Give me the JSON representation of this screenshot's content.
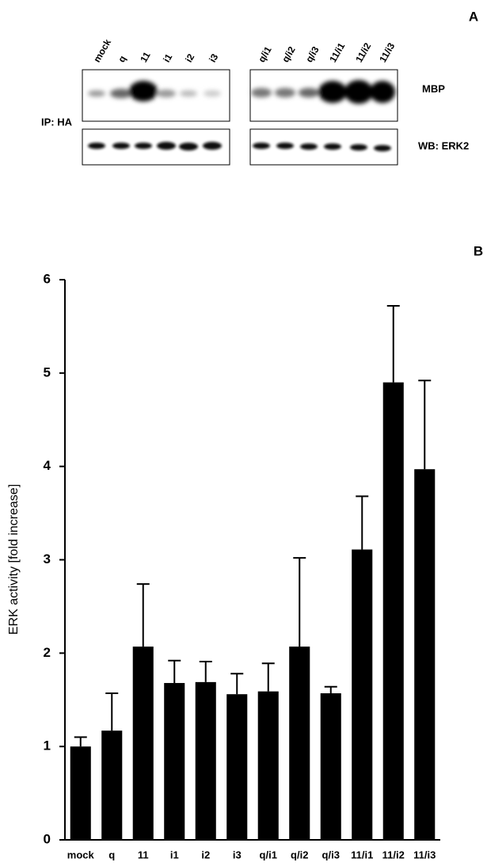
{
  "panel_a": {
    "label": "A",
    "lanes": [
      "mock",
      "q",
      "11",
      "i1",
      "i2",
      "i3",
      "q/i1",
      "q/i2",
      "q/i3",
      "11/i1",
      "11/i2",
      "11/i3"
    ],
    "blot_top": "MBP",
    "blot_bottom": "WB: ERK2",
    "ip": "IP: HA"
  },
  "chart_data": {
    "type": "bar",
    "panel_label": "B",
    "y_label": "ERK activity [fold increase]",
    "categories": [
      "mock",
      "q",
      "11",
      "i1",
      "i2",
      "i3",
      "q/i1",
      "q/i2",
      "q/i3",
      "11/i1",
      "11/i2",
      "11/i3"
    ],
    "values": [
      1.0,
      1.17,
      2.07,
      1.68,
      1.69,
      1.56,
      1.59,
      2.07,
      1.57,
      3.11,
      4.9,
      3.97
    ],
    "errors": [
      0.1,
      0.4,
      0.67,
      0.24,
      0.22,
      0.22,
      0.3,
      0.95,
      0.07,
      0.57,
      0.82,
      0.95
    ],
    "color": "#000000",
    "ylim": [
      0,
      6
    ],
    "yticks": [
      0,
      1,
      2,
      3,
      4,
      5,
      6
    ],
    "grid": false
  }
}
